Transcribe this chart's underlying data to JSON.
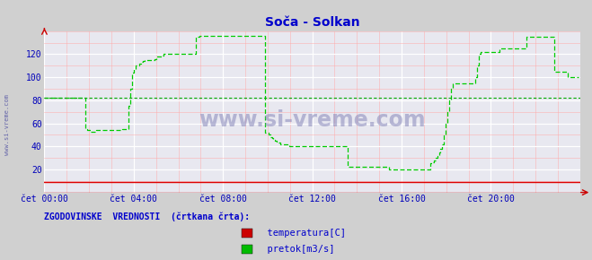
{
  "title": "Soča - Solkan",
  "title_color": "#0000cc",
  "bg_color": "#d0d0d0",
  "plot_bg_color": "#e8e8f0",
  "grid_major_color": "#ffffff",
  "grid_minor_color": "#ffaaaa",
  "ylabel_vals": [
    20,
    40,
    60,
    80,
    100,
    120
  ],
  "ylim": [
    0,
    140
  ],
  "xlim_pts": 288,
  "xtick_positions": [
    0,
    48,
    96,
    144,
    192,
    240
  ],
  "xtick_labels": [
    "čet 00:00",
    "čet 04:00",
    "čet 08:00",
    "čet 12:00",
    "čet 16:00",
    "čet 20:00"
  ],
  "watermark": "www.si-vreme.com",
  "watermark_side": "www.si-vreme.com",
  "legend_title": "ZGODOVINSKE  VREDNOSTI  (črtkana črta):",
  "legend_items": [
    "temperatura[C]",
    "pretok[m3/s]"
  ],
  "legend_colors": [
    "#cc0000",
    "#00bb00"
  ],
  "flow_color": "#00cc00",
  "temp_color": "#dd0000",
  "hist_color": "#00aa00",
  "hist_value": 82,
  "axis_arrow_color": "#cc0000",
  "flow_data": [
    82,
    82,
    82,
    82,
    82,
    82,
    82,
    82,
    82,
    82,
    82,
    82,
    82,
    82,
    82,
    82,
    82,
    82,
    82,
    82,
    82,
    82,
    82,
    82,
    55,
    54,
    54,
    53,
    53,
    53,
    54,
    54,
    54,
    54,
    54,
    54,
    54,
    54,
    54,
    54,
    54,
    54,
    54,
    54,
    54,
    55,
    55,
    55,
    55,
    75,
    90,
    104,
    107,
    110,
    110,
    112,
    113,
    114,
    115,
    115,
    115,
    115,
    115,
    115,
    116,
    118,
    118,
    118,
    119,
    120,
    120,
    120,
    120,
    120,
    120,
    120,
    120,
    120,
    120,
    120,
    120,
    120,
    120,
    120,
    120,
    120,
    120,
    120,
    135,
    135,
    136,
    136,
    136,
    136,
    136,
    136,
    136,
    136,
    136,
    136,
    136,
    136,
    136,
    136,
    136,
    136,
    136,
    136,
    136,
    136,
    136,
    136,
    136,
    136,
    136,
    136,
    136,
    136,
    136,
    136,
    136,
    136,
    136,
    136,
    136,
    136,
    136,
    136,
    52,
    52,
    50,
    48,
    47,
    46,
    45,
    44,
    43,
    42,
    42,
    42,
    42,
    41,
    40,
    40,
    40,
    40,
    40,
    40,
    40,
    40,
    40,
    40,
    40,
    40,
    40,
    40,
    40,
    40,
    40,
    40,
    40,
    40,
    40,
    40,
    40,
    40,
    40,
    40,
    40,
    40,
    40,
    40,
    40,
    40,
    40,
    40,
    22,
    22,
    22,
    22,
    22,
    22,
    22,
    22,
    22,
    22,
    22,
    22,
    22,
    22,
    22,
    22,
    22,
    22,
    22,
    22,
    22,
    22,
    22,
    22,
    20,
    20,
    20,
    20,
    20,
    20,
    20,
    20,
    20,
    20,
    20,
    20,
    20,
    20,
    20,
    20,
    20,
    20,
    20,
    20,
    20,
    20,
    20,
    20,
    25,
    26,
    28,
    30,
    32,
    35,
    38,
    42,
    50,
    60,
    70,
    80,
    90,
    95,
    95,
    95,
    95,
    95,
    95,
    95,
    95,
    95,
    95,
    95,
    95,
    95,
    100,
    110,
    120,
    122,
    122,
    122,
    122,
    122,
    122,
    122,
    122,
    122,
    122,
    122,
    125,
    125,
    125,
    125,
    125,
    125,
    125,
    125,
    125,
    125,
    125,
    125,
    125,
    125,
    125,
    125,
    135,
    135,
    135,
    135,
    135,
    135,
    135,
    135,
    135,
    135,
    135,
    135,
    135,
    135,
    135,
    135,
    105,
    105,
    105,
    105,
    105,
    105,
    105,
    105,
    100,
    100,
    100,
    100,
    100,
    100,
    100
  ],
  "temp_y": 9
}
